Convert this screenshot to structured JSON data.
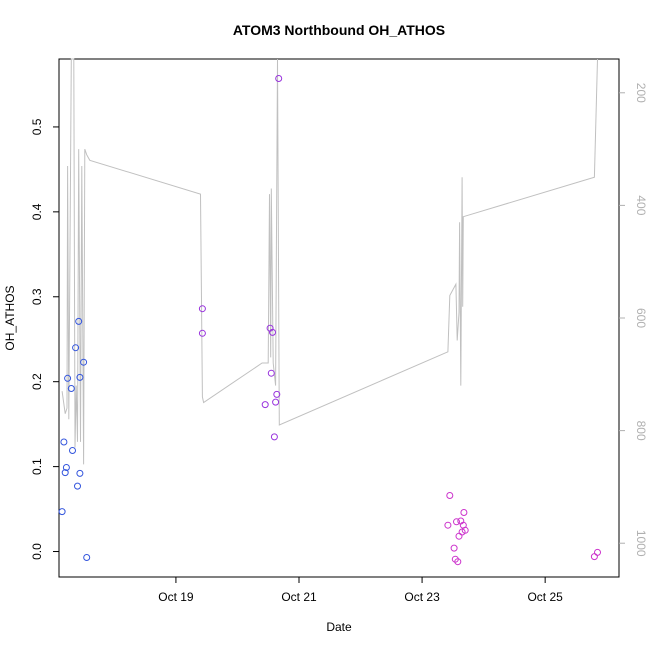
{
  "chart_data": {
    "type": "scatter",
    "title": "ATOM3 Northbound OH_ATHOS",
    "xlabel": "Date",
    "ylabel": "OH_ATHOS",
    "xlim": [
      17.1,
      26.2
    ],
    "ylim": [
      -0.03,
      0.58
    ],
    "right_ylim_top_to_bottom": [
      140,
      1060
    ],
    "x_ticks": [
      {
        "x": 19.0,
        "label": "Oct 19"
      },
      {
        "x": 21.0,
        "label": "Oct 21"
      },
      {
        "x": 23.0,
        "label": "Oct 23"
      },
      {
        "x": 25.0,
        "label": "Oct 25"
      }
    ],
    "y_ticks": [
      {
        "y": 0.0,
        "label": "0.0"
      },
      {
        "y": 0.1,
        "label": "0.1"
      },
      {
        "y": 0.2,
        "label": "0.2"
      },
      {
        "y": 0.3,
        "label": "0.3"
      },
      {
        "y": 0.4,
        "label": "0.4"
      },
      {
        "y": 0.5,
        "label": "0.5"
      }
    ],
    "right_ticks": [
      {
        "v": 200,
        "label": "200"
      },
      {
        "v": 400,
        "label": "400"
      },
      {
        "v": 600,
        "label": "600"
      },
      {
        "v": 800,
        "label": "800"
      },
      {
        "v": 1000,
        "label": "1000"
      }
    ],
    "colors": {
      "early_points": "#3355dd",
      "mid_points": "#9933dd",
      "late_points": "#cc33cc",
      "pressure_line": "#c0c0c0"
    },
    "points": [
      {
        "x": 17.15,
        "y": 0.047,
        "c": "early"
      },
      {
        "x": 17.18,
        "y": 0.129,
        "c": "early"
      },
      {
        "x": 17.2,
        "y": 0.093,
        "c": "early"
      },
      {
        "x": 17.22,
        "y": 0.099,
        "c": "early"
      },
      {
        "x": 17.24,
        "y": 0.204,
        "c": "early"
      },
      {
        "x": 17.3,
        "y": 0.192,
        "c": "early"
      },
      {
        "x": 17.32,
        "y": 0.119,
        "c": "early"
      },
      {
        "x": 17.37,
        "y": 0.24,
        "c": "early"
      },
      {
        "x": 17.4,
        "y": 0.077,
        "c": "early"
      },
      {
        "x": 17.42,
        "y": 0.271,
        "c": "early"
      },
      {
        "x": 17.44,
        "y": 0.205,
        "c": "early"
      },
      {
        "x": 17.44,
        "y": 0.092,
        "c": "early"
      },
      {
        "x": 17.5,
        "y": 0.223,
        "c": "early"
      },
      {
        "x": 17.55,
        "y": -0.007,
        "c": "early"
      },
      {
        "x": 19.43,
        "y": 0.286,
        "c": "mid"
      },
      {
        "x": 19.43,
        "y": 0.257,
        "c": "mid"
      },
      {
        "x": 20.45,
        "y": 0.173,
        "c": "mid"
      },
      {
        "x": 20.53,
        "y": 0.263,
        "c": "mid"
      },
      {
        "x": 20.55,
        "y": 0.21,
        "c": "mid"
      },
      {
        "x": 20.57,
        "y": 0.258,
        "c": "mid"
      },
      {
        "x": 20.6,
        "y": 0.135,
        "c": "mid"
      },
      {
        "x": 20.62,
        "y": 0.176,
        "c": "mid"
      },
      {
        "x": 20.64,
        "y": 0.185,
        "c": "mid"
      },
      {
        "x": 20.67,
        "y": 0.557,
        "c": "mid"
      },
      {
        "x": 23.45,
        "y": 0.066,
        "c": "late"
      },
      {
        "x": 23.42,
        "y": 0.031,
        "c": "late"
      },
      {
        "x": 23.52,
        "y": 0.004,
        "c": "late"
      },
      {
        "x": 23.54,
        "y": -0.009,
        "c": "late"
      },
      {
        "x": 23.56,
        "y": 0.035,
        "c": "late"
      },
      {
        "x": 23.58,
        "y": -0.012,
        "c": "late"
      },
      {
        "x": 23.6,
        "y": 0.018,
        "c": "late"
      },
      {
        "x": 23.63,
        "y": 0.036,
        "c": "late"
      },
      {
        "x": 23.65,
        "y": 0.023,
        "c": "late"
      },
      {
        "x": 23.67,
        "y": 0.031,
        "c": "late"
      },
      {
        "x": 23.68,
        "y": 0.046,
        "c": "late"
      },
      {
        "x": 23.7,
        "y": 0.025,
        "c": "late"
      },
      {
        "x": 25.8,
        "y": -0.006,
        "c": "late"
      },
      {
        "x": 25.85,
        "y": -0.001,
        "c": "late"
      }
    ],
    "pressure_series": [
      [
        17.15,
        730
      ],
      [
        17.2,
        770
      ],
      [
        17.23,
        760
      ],
      [
        17.24,
        330
      ],
      [
        17.26,
        780
      ],
      [
        17.3,
        140
      ],
      [
        17.34,
        140
      ],
      [
        17.36,
        830
      ],
      [
        17.38,
        720
      ],
      [
        17.4,
        820
      ],
      [
        17.42,
        300
      ],
      [
        17.45,
        820
      ],
      [
        17.47,
        330
      ],
      [
        17.5,
        860
      ],
      [
        17.52,
        300
      ],
      [
        17.55,
        310
      ],
      [
        17.6,
        320
      ],
      [
        19.4,
        380
      ],
      [
        19.43,
        740
      ],
      [
        19.45,
        750
      ],
      [
        20.4,
        680
      ],
      [
        20.5,
        680
      ],
      [
        20.52,
        380
      ],
      [
        20.54,
        670
      ],
      [
        20.55,
        370
      ],
      [
        20.58,
        680
      ],
      [
        20.6,
        700
      ],
      [
        20.62,
        720
      ],
      [
        20.65,
        140
      ],
      [
        20.68,
        790
      ],
      [
        23.42,
        660
      ],
      [
        23.45,
        560
      ],
      [
        23.55,
        540
      ],
      [
        23.57,
        640
      ],
      [
        23.6,
        590
      ],
      [
        23.61,
        430
      ],
      [
        23.63,
        720
      ],
      [
        23.65,
        350
      ],
      [
        23.66,
        580
      ],
      [
        23.67,
        420
      ],
      [
        25.8,
        350
      ],
      [
        25.85,
        140
      ]
    ]
  }
}
